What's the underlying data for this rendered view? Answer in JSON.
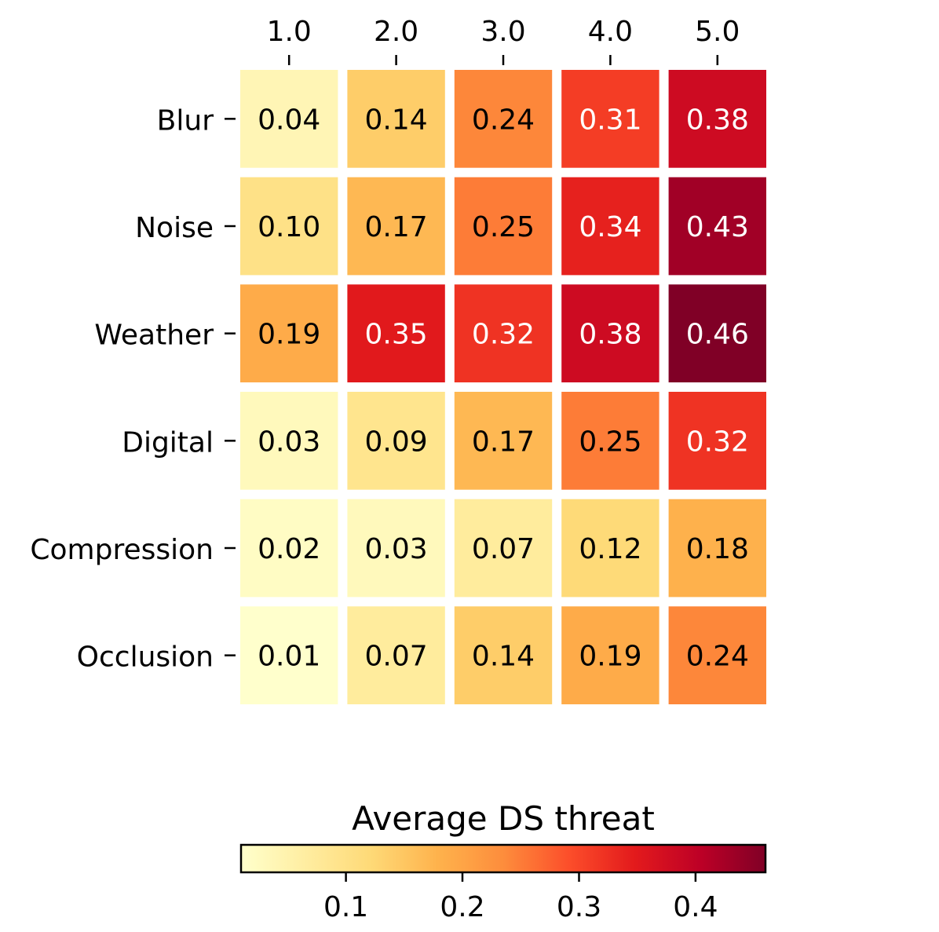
{
  "chart_data": {
    "type": "heatmap",
    "title": "",
    "x_labels": [
      "1.0",
      "2.0",
      "3.0",
      "4.0",
      "5.0"
    ],
    "y_labels": [
      "Blur",
      "Noise",
      "Weather",
      "Digital",
      "Compression",
      "Occlusion"
    ],
    "values": [
      [
        0.04,
        0.14,
        0.24,
        0.31,
        0.38
      ],
      [
        0.1,
        0.17,
        0.25,
        0.34,
        0.43
      ],
      [
        0.19,
        0.35,
        0.32,
        0.38,
        0.46
      ],
      [
        0.03,
        0.09,
        0.17,
        0.25,
        0.32
      ],
      [
        0.02,
        0.03,
        0.07,
        0.12,
        0.18
      ],
      [
        0.01,
        0.07,
        0.14,
        0.19,
        0.24
      ]
    ],
    "value_format": "0.00",
    "x_axis_position": "top",
    "colormap": "YlOrRd",
    "colorbar": {
      "label": "Average DS threat",
      "orientation": "horizontal",
      "placement": "bottom",
      "range": [
        0.01,
        0.46
      ],
      "ticks": [
        0.1,
        0.2,
        0.3,
        0.4
      ],
      "tick_labels": [
        "0.1",
        "0.2",
        "0.3",
        "0.4"
      ]
    }
  }
}
